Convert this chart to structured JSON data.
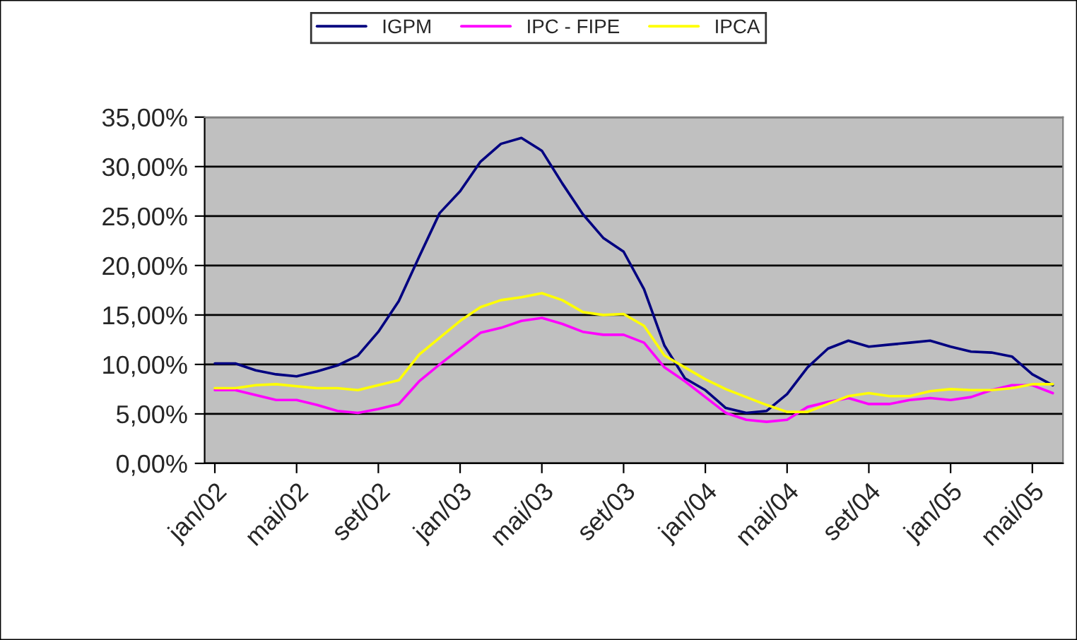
{
  "chart_data": {
    "type": "line",
    "categories": [
      "jan/02",
      null,
      null,
      null,
      "mai/02",
      null,
      null,
      null,
      "set/02",
      null,
      null,
      null,
      "jan/03",
      null,
      null,
      null,
      "mai/03",
      null,
      null,
      null,
      "set/03",
      null,
      null,
      null,
      "jan/04",
      null,
      null,
      null,
      "mai/04",
      null,
      null,
      null,
      "set/04",
      null,
      null,
      null,
      "jan/05",
      null,
      null,
      null,
      "mai/05",
      null
    ],
    "series": [
      {
        "name": "IGPM",
        "color": "#000080",
        "values": [
          10.1,
          10.1,
          9.4,
          9.0,
          8.8,
          9.3,
          9.9,
          10.9,
          13.3,
          16.4,
          20.9,
          25.3,
          27.5,
          30.5,
          32.3,
          32.9,
          31.6,
          28.3,
          25.2,
          22.8,
          21.4,
          17.6,
          11.9,
          8.6,
          7.4,
          5.6,
          5.1,
          5.3,
          7.0,
          9.7,
          11.6,
          12.4,
          11.8,
          12.0,
          12.2,
          12.4,
          11.8,
          11.3,
          11.2,
          10.8,
          9.0,
          7.9
        ]
      },
      {
        "name": "IPC - FIPE",
        "color": "#ff00ff",
        "values": [
          7.4,
          7.4,
          6.9,
          6.4,
          6.4,
          5.9,
          5.3,
          5.1,
          5.5,
          6.0,
          8.3,
          10.0,
          11.6,
          13.2,
          13.7,
          14.4,
          14.7,
          14.1,
          13.3,
          13.0,
          13.0,
          12.2,
          9.7,
          8.3,
          6.7,
          5.1,
          4.4,
          4.2,
          4.4,
          5.7,
          6.2,
          6.6,
          6.0,
          6.0,
          6.4,
          6.6,
          6.4,
          6.7,
          7.4,
          7.9,
          7.9,
          7.1
        ]
      },
      {
        "name": "IPCA",
        "color": "#ffff00",
        "values": [
          7.6,
          7.6,
          7.9,
          8.0,
          7.8,
          7.6,
          7.6,
          7.4,
          7.9,
          8.4,
          11.0,
          12.7,
          14.4,
          15.8,
          16.5,
          16.8,
          17.2,
          16.5,
          15.3,
          15.0,
          15.1,
          13.9,
          10.9,
          9.7,
          8.5,
          7.5,
          6.7,
          5.9,
          5.2,
          5.2,
          6.0,
          6.8,
          7.1,
          6.8,
          6.8,
          7.3,
          7.5,
          7.4,
          7.4,
          7.6,
          8.0,
          8.0
        ]
      }
    ],
    "ylim": [
      0,
      35
    ],
    "yticks": [
      {
        "value": 0,
        "label": "0,00%"
      },
      {
        "value": 5,
        "label": "5,00%"
      },
      {
        "value": 10,
        "label": "10,00%"
      },
      {
        "value": 15,
        "label": "15,00%"
      },
      {
        "value": 20,
        "label": "20,00%"
      },
      {
        "value": 25,
        "label": "25,00%"
      },
      {
        "value": 30,
        "label": "30,00%"
      },
      {
        "value": 35,
        "label": "35,00%"
      }
    ],
    "grid": "y",
    "legend": "top",
    "marker": "none",
    "line_style": "solid"
  }
}
